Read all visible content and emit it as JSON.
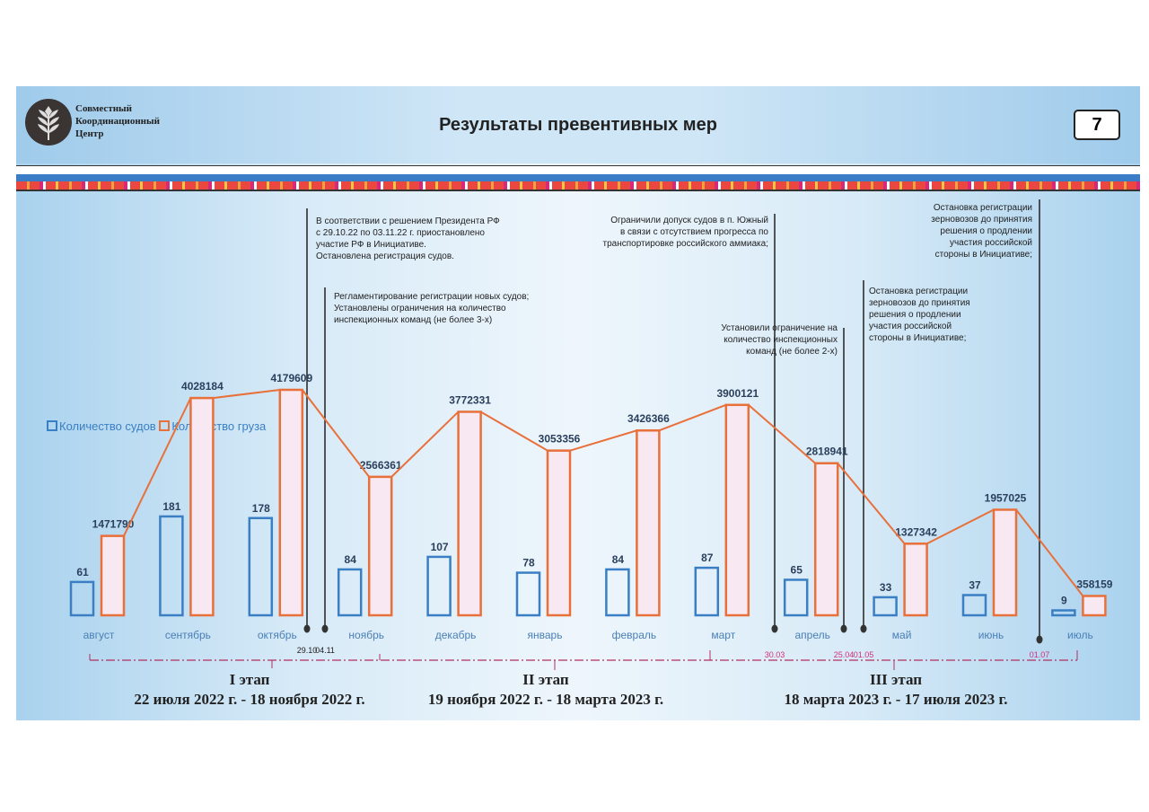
{
  "header": {
    "org_name": [
      "Совместный",
      "Координационный",
      "Центр"
    ],
    "title": "Результаты превентивных мер",
    "page_number": "7"
  },
  "legend": {
    "ships": "Количество судов",
    "cargo": "Количество груза"
  },
  "colors": {
    "ships": "#3a7fc4",
    "cargo": "#e8703a",
    "cargo_fill": "#f7e8f2",
    "line": "#e8703a"
  },
  "annotations": [
    {
      "lines": [
        "В соответствии с решением Президента РФ",
        "с 29.10.22 по 03.11.22 г. приостановлено",
        "участие РФ в Инициативе.",
        "Остановлена регистрация судов."
      ],
      "date": "29.10"
    },
    {
      "lines": [
        "Регламентирование регистрации новых судов;",
        "Установлены ограничения на количество",
        "инспекционных команд (не более 3-х)"
      ],
      "date": "04.11"
    },
    {
      "lines": [
        "Ограничили допуск судов в п. Южный",
        "в связи с отсутствием прогресса по",
        "транспортировке российского аммиака;"
      ],
      "date": "30.03"
    },
    {
      "lines": [
        "Установили ограничение на",
        "количество инспекционных",
        "команд (не более 2-х)"
      ],
      "date": "25.04"
    },
    {
      "lines": [
        "Остановка регистрации",
        "зерновозов до принятия",
        "решения о продлении",
        "участия российской",
        "стороны в Инициативе;"
      ],
      "date": "01.05"
    },
    {
      "lines": [
        "Остановка регистрации",
        "зерновозов до принятия",
        "решения о продлении",
        "участия российской",
        "стороны в Инициативе;"
      ],
      "date": "01.07"
    }
  ],
  "stages": [
    {
      "name": "I этап",
      "period": "22 июля 2022 г. - 18 ноября 2022 г."
    },
    {
      "name": "II этап",
      "period": "19 ноября 2022 г. - 18 марта 2023 г."
    },
    {
      "name": "III этап",
      "period": "18 марта 2023 г. - 17 июля 2023 г."
    }
  ],
  "chart_data": {
    "type": "bar",
    "categories": [
      "август",
      "сентябрь",
      "октябрь",
      "ноябрь",
      "декабрь",
      "январь",
      "февраль",
      "март",
      "апрель",
      "май",
      "июнь",
      "июль"
    ],
    "series": [
      {
        "name": "Количество судов",
        "values": [
          61,
          181,
          178,
          84,
          107,
          78,
          84,
          87,
          65,
          33,
          37,
          9
        ]
      },
      {
        "name": "Количество груза",
        "values": [
          1471790,
          4028184,
          4179609,
          2566361,
          3772331,
          3053356,
          3426366,
          3900121,
          2818941,
          1327342,
          1957025,
          358159
        ]
      }
    ],
    "data_labels": true,
    "grid": false,
    "legend_position": "top-left"
  }
}
